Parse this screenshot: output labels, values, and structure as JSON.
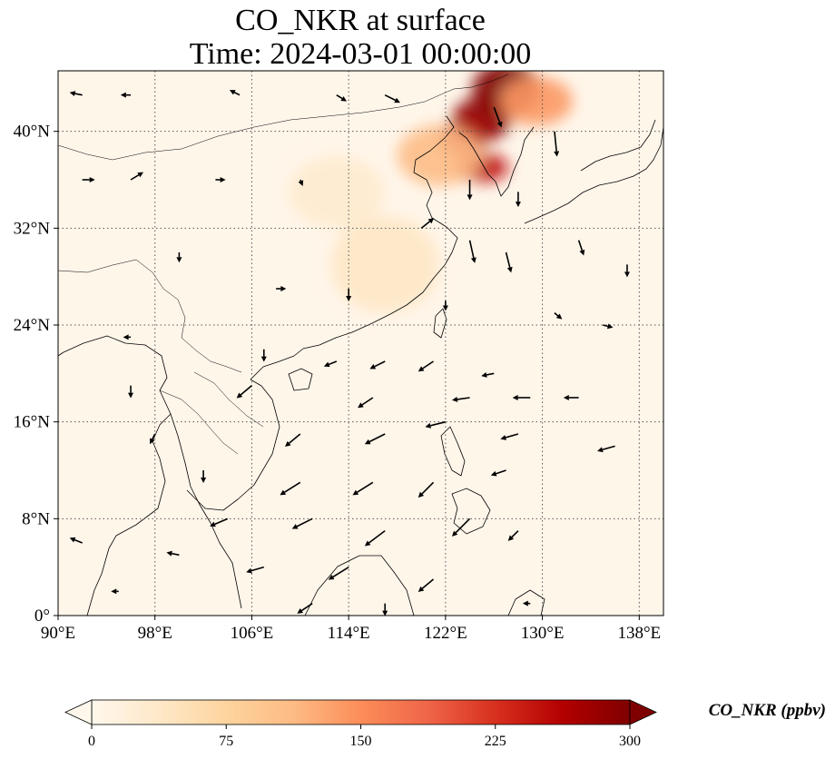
{
  "title": {
    "line1": "CO_NKR at surface",
    "line2": "Time: 2024-03-01 00:00:00"
  },
  "chart_data": {
    "type": "heatmap",
    "variable": "CO_NKR",
    "level": "surface",
    "time": "2024-03-01 00:00:00",
    "lon_range": [
      90,
      140
    ],
    "lat_range": [
      0,
      45
    ],
    "x_ticks": [
      {
        "value": 90,
        "label": "90°E"
      },
      {
        "value": 98,
        "label": "98°E"
      },
      {
        "value": 106,
        "label": "106°E"
      },
      {
        "value": 114,
        "label": "114°E"
      },
      {
        "value": 122,
        "label": "122°E"
      },
      {
        "value": 130,
        "label": "130°E"
      },
      {
        "value": 138,
        "label": "138°E"
      }
    ],
    "y_ticks": [
      {
        "value": 0,
        "label": "0°"
      },
      {
        "value": 8,
        "label": "8°N"
      },
      {
        "value": 16,
        "label": "16°N"
      },
      {
        "value": 24,
        "label": "24°N"
      },
      {
        "value": 32,
        "label": "32°N"
      },
      {
        "value": 40,
        "label": "40°N"
      }
    ],
    "grid": true,
    "colormap": "OrRd",
    "color_stops": [
      "#fff7ec",
      "#fee8c8",
      "#fdd49e",
      "#fdbb84",
      "#fc8d59",
      "#ef6548",
      "#d7301f",
      "#b30000",
      "#7f0000"
    ],
    "colorbar": {
      "label": "CO_NKR (ppbv)",
      "range": [
        0,
        300
      ],
      "ticks": [
        {
          "value": 0,
          "label": "0"
        },
        {
          "value": 75,
          "label": "75"
        },
        {
          "value": 150,
          "label": "150"
        },
        {
          "value": 225,
          "label": "225"
        },
        {
          "value": 300,
          "label": "300"
        }
      ],
      "extend": "both",
      "placement": "bottom"
    },
    "plumes": [
      {
        "lon": 127.0,
        "lat": 43.5,
        "rx": 2.8,
        "ry": 2.2,
        "value": 300
      },
      {
        "lon": 125.0,
        "lat": 41.0,
        "rx": 2.4,
        "ry": 1.8,
        "value": 290
      },
      {
        "lon": 123.5,
        "lat": 39.5,
        "rx": 2.0,
        "ry": 1.5,
        "value": 260
      },
      {
        "lon": 125.0,
        "lat": 37.0,
        "rx": 2.2,
        "ry": 1.2,
        "value": 250
      },
      {
        "lon": 129.5,
        "lat": 42.5,
        "rx": 3.0,
        "ry": 2.0,
        "value": 140
      },
      {
        "lon": 121.5,
        "lat": 38.0,
        "rx": 3.5,
        "ry": 2.5,
        "value": 110
      },
      {
        "lon": 117.0,
        "lat": 29.0,
        "rx": 4.5,
        "ry": 4.0,
        "value": 40
      },
      {
        "lon": 113.0,
        "lat": 35.0,
        "rx": 4.0,
        "ry": 3.0,
        "value": 30
      }
    ],
    "wind_vectors": [
      {
        "lon": 92,
        "lat": 43,
        "u": -1.0,
        "v": 0.2
      },
      {
        "lon": 96,
        "lat": 43,
        "u": -0.8,
        "v": 0.0
      },
      {
        "lon": 105,
        "lat": 43,
        "u": -0.8,
        "v": 0.4
      },
      {
        "lon": 113,
        "lat": 43,
        "u": 0.8,
        "v": -0.5
      },
      {
        "lon": 117,
        "lat": 43,
        "u": 1.2,
        "v": -0.6
      },
      {
        "lon": 126,
        "lat": 42,
        "u": 0.6,
        "v": -1.6
      },
      {
        "lon": 131,
        "lat": 40,
        "u": 0.2,
        "v": -2.0
      },
      {
        "lon": 92,
        "lat": 36,
        "u": 1.0,
        "v": 0.0
      },
      {
        "lon": 96,
        "lat": 36,
        "u": 1.0,
        "v": 0.6
      },
      {
        "lon": 103,
        "lat": 36,
        "u": 0.8,
        "v": 0.0
      },
      {
        "lon": 110,
        "lat": 36,
        "u": 0.2,
        "v": -0.5
      },
      {
        "lon": 124,
        "lat": 36,
        "u": 0.0,
        "v": -1.6
      },
      {
        "lon": 128,
        "lat": 35,
        "u": 0.0,
        "v": -1.2
      },
      {
        "lon": 120,
        "lat": 32,
        "u": 1.0,
        "v": 0.8
      },
      {
        "lon": 124,
        "lat": 31,
        "u": 0.4,
        "v": -1.8
      },
      {
        "lon": 127,
        "lat": 30,
        "u": 0.4,
        "v": -1.6
      },
      {
        "lon": 133,
        "lat": 31,
        "u": 0.4,
        "v": -1.2
      },
      {
        "lon": 137,
        "lat": 29,
        "u": 0.0,
        "v": -1.0
      },
      {
        "lon": 100,
        "lat": 30,
        "u": 0.0,
        "v": -0.8
      },
      {
        "lon": 108,
        "lat": 27,
        "u": 0.8,
        "v": 0.0
      },
      {
        "lon": 114,
        "lat": 27,
        "u": 0.0,
        "v": -1.0
      },
      {
        "lon": 122,
        "lat": 26,
        "u": 0.0,
        "v": -0.8
      },
      {
        "lon": 131,
        "lat": 25,
        "u": 0.6,
        "v": -0.5
      },
      {
        "lon": 135,
        "lat": 24,
        "u": 0.8,
        "v": -0.2
      },
      {
        "lon": 96,
        "lat": 23,
        "u": -0.6,
        "v": 0.0
      },
      {
        "lon": 107,
        "lat": 22,
        "u": 0.0,
        "v": -1.0
      },
      {
        "lon": 113,
        "lat": 21,
        "u": -1.0,
        "v": -0.4
      },
      {
        "lon": 117,
        "lat": 21,
        "u": -1.2,
        "v": -0.6
      },
      {
        "lon": 121,
        "lat": 21,
        "u": -1.2,
        "v": -0.8
      },
      {
        "lon": 126,
        "lat": 20,
        "u": -1.0,
        "v": -0.2
      },
      {
        "lon": 96,
        "lat": 19,
        "u": 0.0,
        "v": -1.0
      },
      {
        "lon": 106,
        "lat": 19,
        "u": -1.2,
        "v": -1.0
      },
      {
        "lon": 116,
        "lat": 18,
        "u": -1.2,
        "v": -0.8
      },
      {
        "lon": 124,
        "lat": 18,
        "u": -1.4,
        "v": -0.2
      },
      {
        "lon": 129,
        "lat": 18,
        "u": -1.4,
        "v": 0.0
      },
      {
        "lon": 133,
        "lat": 18,
        "u": -1.2,
        "v": 0.0
      },
      {
        "lon": 98,
        "lat": 15,
        "u": -0.4,
        "v": -0.8
      },
      {
        "lon": 110,
        "lat": 15,
        "u": -1.2,
        "v": -1.0
      },
      {
        "lon": 117,
        "lat": 15,
        "u": -1.6,
        "v": -0.8
      },
      {
        "lon": 122,
        "lat": 16,
        "u": -1.6,
        "v": -0.4
      },
      {
        "lon": 128,
        "lat": 15,
        "u": -1.4,
        "v": -0.4
      },
      {
        "lon": 136,
        "lat": 14,
        "u": -1.4,
        "v": -0.4
      },
      {
        "lon": 102,
        "lat": 12,
        "u": 0.0,
        "v": -1.0
      },
      {
        "lon": 110,
        "lat": 11,
        "u": -1.6,
        "v": -1.0
      },
      {
        "lon": 116,
        "lat": 11,
        "u": -1.6,
        "v": -1.0
      },
      {
        "lon": 121,
        "lat": 11,
        "u": -1.2,
        "v": -1.2
      },
      {
        "lon": 127,
        "lat": 12,
        "u": -1.2,
        "v": -0.4
      },
      {
        "lon": 104,
        "lat": 8,
        "u": -1.4,
        "v": -0.6
      },
      {
        "lon": 111,
        "lat": 8,
        "u": -1.6,
        "v": -0.8
      },
      {
        "lon": 117,
        "lat": 7,
        "u": -1.6,
        "v": -1.2
      },
      {
        "lon": 124,
        "lat": 8,
        "u": -1.4,
        "v": -1.4
      },
      {
        "lon": 128,
        "lat": 7,
        "u": -0.8,
        "v": -0.8
      },
      {
        "lon": 92,
        "lat": 6,
        "u": -1.0,
        "v": 0.4
      },
      {
        "lon": 100,
        "lat": 5,
        "u": -1.0,
        "v": 0.2
      },
      {
        "lon": 107,
        "lat": 4,
        "u": -1.4,
        "v": -0.4
      },
      {
        "lon": 114,
        "lat": 4,
        "u": -1.6,
        "v": -1.0
      },
      {
        "lon": 121,
        "lat": 3,
        "u": -1.2,
        "v": -1.0
      },
      {
        "lon": 95,
        "lat": 2,
        "u": -0.6,
        "v": 0.0
      },
      {
        "lon": 111,
        "lat": 1,
        "u": -1.2,
        "v": -0.8
      },
      {
        "lon": 117,
        "lat": 1,
        "u": 0.0,
        "v": -1.0
      },
      {
        "lon": 129,
        "lat": 1,
        "u": -0.6,
        "v": 0.0
      }
    ]
  }
}
